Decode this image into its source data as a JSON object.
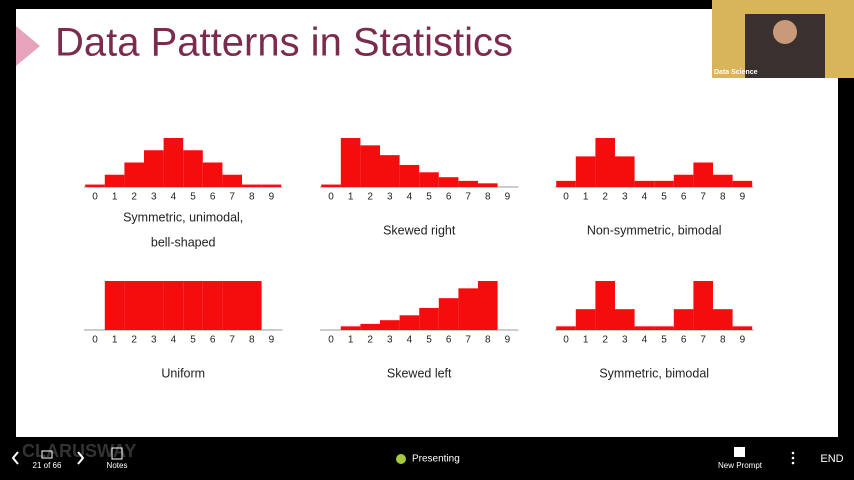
{
  "slide": {
    "title": "Data Patterns in Statistics",
    "panels": [
      {
        "caption": [
          "Symmetric, unimodal,",
          "bell-shaped"
        ],
        "ticks": [
          0,
          1,
          2,
          3,
          4,
          5,
          6,
          7,
          8,
          9
        ],
        "values": [
          0.2,
          1,
          2,
          3,
          4,
          3,
          2,
          1,
          0.2,
          0.2
        ]
      },
      {
        "caption": [
          "Skewed right"
        ],
        "ticks": [
          0,
          1,
          2,
          3,
          4,
          5,
          6,
          7,
          8,
          9
        ],
        "values": [
          0.2,
          4,
          3.4,
          2.6,
          1.8,
          1.2,
          0.8,
          0.5,
          0.3,
          0
        ]
      },
      {
        "caption": [
          "Non-symmetric, bimodal"
        ],
        "ticks": [
          0,
          1,
          2,
          3,
          4,
          5,
          6,
          7,
          8,
          9
        ],
        "values": [
          0.5,
          2.5,
          4,
          2.5,
          0.5,
          0.5,
          1,
          2,
          1,
          0.5
        ]
      },
      {
        "caption": [
          "Uniform"
        ],
        "ticks": [
          0,
          1,
          2,
          3,
          4,
          5,
          6,
          7,
          8,
          9
        ],
        "values": [
          0,
          4,
          4,
          4,
          4,
          4,
          4,
          4,
          4,
          0
        ]
      },
      {
        "caption": [
          "Skewed left"
        ],
        "ticks": [
          0,
          1,
          2,
          3,
          4,
          5,
          6,
          7,
          8,
          9
        ],
        "values": [
          0,
          0.3,
          0.5,
          0.8,
          1.2,
          1.8,
          2.6,
          3.4,
          4,
          0
        ]
      },
      {
        "caption": [
          "Symmetric, bimodal"
        ],
        "ticks": [
          0,
          1,
          2,
          3,
          4,
          5,
          6,
          7,
          8,
          9
        ],
        "values": [
          0.3,
          1.7,
          4,
          1.7,
          0.3,
          0.3,
          1.7,
          4,
          1.7,
          0.3
        ]
      }
    ]
  },
  "webcam": {
    "label": "Data Science"
  },
  "toolbar": {
    "slide_counter": "21 of 66",
    "notes": "Notes",
    "status": "Presenting",
    "new_prompt": "New Prompt",
    "end": "END",
    "watermark": "CLARUSWAY"
  }
}
